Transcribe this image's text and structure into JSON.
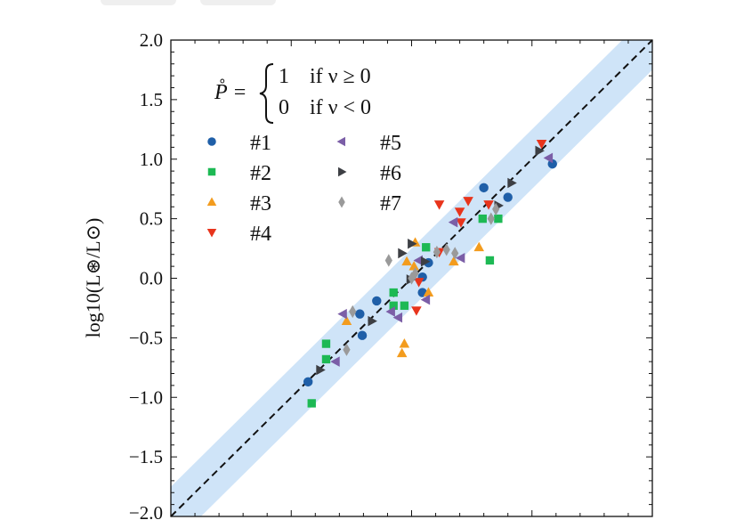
{
  "toolbar": {
    "buttons": [
      "",
      ""
    ]
  },
  "chart_data": {
    "type": "scatter",
    "title": "",
    "xlabel": "",
    "ylabel": "log10(L⊛/L⊙)",
    "ylabel_parts": {
      "main": "log",
      "sub": "10",
      "num": "L",
      "num_sub": "⊛",
      "den": "L",
      "den_sub": "⊙"
    },
    "xlim": [
      -2.0,
      2.0
    ],
    "ylim": [
      -2.0,
      2.0
    ],
    "yticks": [
      "−2.0",
      "−1.5",
      "−1.0",
      "−0.5",
      "0.0",
      "0.5",
      "1.0",
      "1.5",
      "2.0"
    ],
    "ytick_values": [
      -2.0,
      -1.5,
      -1.0,
      -0.5,
      0.0,
      0.5,
      1.0,
      1.5,
      2.0
    ],
    "grid": false,
    "reference_line": {
      "style": "dashed",
      "color": "#111111",
      "relation": "y = x"
    },
    "band": {
      "half_width": 0.25,
      "color": "#cfe4f8"
    },
    "annotation": {
      "lhs": "P̊ =",
      "cases": [
        {
          "value": "1",
          "condition": "if ν ≥ 0"
        },
        {
          "value": "0",
          "condition": "if ν < 0"
        }
      ]
    },
    "legend_placement": "upper-left",
    "series": [
      {
        "name": "#1",
        "marker": "circle",
        "color": "#1f5fa8",
        "points": [
          [
            -0.86,
            -0.87
          ],
          [
            -0.43,
            -0.3
          ],
          [
            -0.29,
            -0.19
          ],
          [
            -0.41,
            -0.48
          ],
          [
            0.09,
            0.01
          ],
          [
            0.09,
            -0.12
          ],
          [
            0.14,
            0.13
          ],
          [
            0.6,
            0.76
          ],
          [
            0.8,
            0.68
          ],
          [
            1.17,
            0.96
          ]
        ]
      },
      {
        "name": "#2",
        "marker": "square",
        "color": "#1db954",
        "points": [
          [
            -0.71,
            -0.55
          ],
          [
            -0.71,
            -0.68
          ],
          [
            -0.83,
            -1.05
          ],
          [
            -0.15,
            -0.12
          ],
          [
            -0.15,
            -0.23
          ],
          [
            -0.06,
            -0.23
          ],
          [
            0.12,
            0.26
          ],
          [
            0.59,
            0.5
          ],
          [
            0.72,
            0.5
          ],
          [
            0.65,
            0.15
          ]
        ]
      },
      {
        "name": "#3",
        "marker": "triangle-up",
        "color": "#f39c1e",
        "points": [
          [
            -0.54,
            -0.36
          ],
          [
            -0.06,
            -0.55
          ],
          [
            -0.08,
            -0.63
          ],
          [
            -0.04,
            0.14
          ],
          [
            0.03,
            0.3
          ],
          [
            0.02,
            0.1
          ],
          [
            0.14,
            -0.12
          ],
          [
            0.35,
            0.14
          ],
          [
            0.56,
            0.26
          ]
        ]
      },
      {
        "name": "#4",
        "marker": "triangle-down",
        "color": "#e8341c",
        "points": [
          [
            0.23,
            0.62
          ],
          [
            0.47,
            0.65
          ],
          [
            0.4,
            0.56
          ],
          [
            0.41,
            0.47
          ],
          [
            0.64,
            0.62
          ],
          [
            0.04,
            -0.27
          ],
          [
            0.06,
            -0.03
          ],
          [
            0.23,
            0.22
          ],
          [
            1.08,
            1.13
          ]
        ]
      },
      {
        "name": "#5",
        "marker": "triangle-left",
        "color": "#7b5ea7",
        "points": [
          [
            -0.57,
            -0.3
          ],
          [
            -0.63,
            -0.7
          ],
          [
            -0.17,
            -0.28
          ],
          [
            -0.11,
            -0.33
          ],
          [
            0.12,
            -0.18
          ],
          [
            0.06,
            0.15
          ],
          [
            0.41,
            0.17
          ],
          [
            0.35,
            0.47
          ],
          [
            1.14,
            1.01
          ]
        ]
      },
      {
        "name": "#6",
        "marker": "triangle-right",
        "color": "#3d3f44",
        "points": [
          [
            -0.76,
            -0.77
          ],
          [
            -0.33,
            -0.36
          ],
          [
            -0.08,
            0.21
          ],
          [
            0.0,
            0.29
          ],
          [
            0.11,
            0.14
          ],
          [
            -0.01,
            -0.01
          ],
          [
            0.83,
            0.8
          ],
          [
            0.72,
            0.61
          ],
          [
            1.06,
            1.07
          ]
        ]
      },
      {
        "name": "#7",
        "marker": "diamond",
        "color": "#9a9a9a",
        "points": [
          [
            -0.49,
            -0.28
          ],
          [
            -0.54,
            -0.6
          ],
          [
            -0.19,
            0.15
          ],
          [
            0.03,
            0.04
          ],
          [
            0.0,
            0.0
          ],
          [
            0.21,
            0.22
          ],
          [
            0.29,
            0.24
          ],
          [
            0.36,
            0.21
          ],
          [
            0.66,
            0.5
          ],
          [
            0.7,
            0.58
          ]
        ]
      }
    ]
  }
}
